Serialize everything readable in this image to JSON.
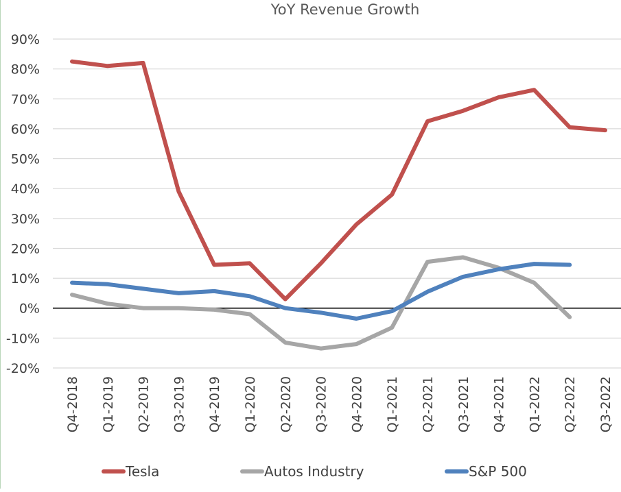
{
  "chart_data": {
    "type": "line",
    "title": "YoY Revenue Growth",
    "xlabel": "",
    "ylabel": "",
    "categories": [
      "Q4-2018",
      "Q1-2019",
      "Q2-2019",
      "Q3-2019",
      "Q4-2019",
      "Q1-2020",
      "Q2-2020",
      "Q3-2020",
      "Q4-2020",
      "Q1-2021",
      "Q2-2021",
      "Q3-2021",
      "Q4-2021",
      "Q1-2022",
      "Q2-2022",
      "Q3-2022"
    ],
    "ylim": [
      -20,
      90
    ],
    "y_ticks": [
      90,
      80,
      70,
      60,
      50,
      40,
      30,
      20,
      10,
      0,
      -10,
      -20
    ],
    "y_tick_labels": [
      "90%",
      "80%",
      "70%",
      "60%",
      "50%",
      "40%",
      "30%",
      "20%",
      "10%",
      "0%",
      "-10%",
      "-20%"
    ],
    "grid": true,
    "legend_position": "bottom",
    "series": [
      {
        "name": "Tesla",
        "color": "#c0504d",
        "values": [
          82.5,
          81,
          82,
          39,
          14.5,
          15,
          3,
          15,
          28,
          38,
          62.5,
          66,
          70.5,
          73,
          60.5,
          59.5
        ]
      },
      {
        "name": "Autos Industry",
        "color": "#a6a6a6",
        "values": [
          4.5,
          1.5,
          0,
          0,
          -0.5,
          -2,
          -11.5,
          -13.5,
          -12,
          -6.5,
          15.5,
          17,
          13.5,
          8.5,
          -3,
          null
        ]
      },
      {
        "name": "S&P 500",
        "color": "#4f81bd",
        "values": [
          8.5,
          8,
          6.5,
          5,
          5.7,
          4,
          0,
          -1.5,
          -3.5,
          -1,
          5.5,
          10.5,
          13,
          14.8,
          14.5,
          null
        ]
      }
    ]
  }
}
